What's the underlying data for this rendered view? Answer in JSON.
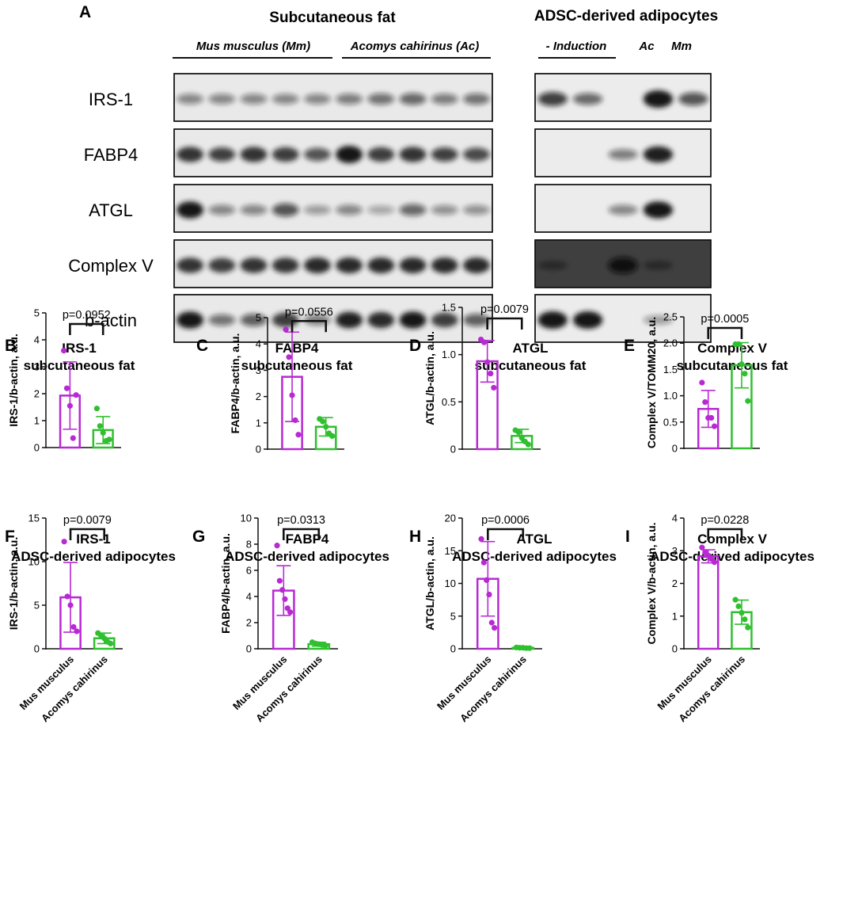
{
  "panel_a": {
    "letter": "A",
    "left_header": "Subcutaneous fat",
    "right_header": "ADSC-derived adipocytes",
    "group_mm": "Mus musculus (Mm)",
    "group_ac": "Acomys cahirinus (Ac)",
    "group_induction": "- Induction",
    "group_ac_short": "Ac",
    "group_mm_short": "Mm",
    "rows": [
      {
        "label": "IRS-1",
        "left": [
          0.35,
          0.35,
          0.35,
          0.35,
          0.35,
          0.4,
          0.45,
          0.5,
          0.4,
          0.45
        ],
        "right": [
          0.7,
          0.5,
          0.0,
          1.0,
          0.6
        ]
      },
      {
        "label": "FABP4",
        "left": [
          0.8,
          0.7,
          0.8,
          0.75,
          0.6,
          1.0,
          0.75,
          0.8,
          0.7,
          0.65
        ],
        "right": [
          0.0,
          0.0,
          0.4,
          0.9,
          0.0
        ]
      },
      {
        "label": "ATGL",
        "left": [
          0.95,
          0.35,
          0.35,
          0.6,
          0.25,
          0.35,
          0.2,
          0.5,
          0.3,
          0.3
        ],
        "right": [
          0.0,
          0.0,
          0.35,
          0.95,
          0.0
        ]
      },
      {
        "label": "Complex V",
        "left": [
          0.8,
          0.75,
          0.8,
          0.8,
          0.85,
          0.85,
          0.85,
          0.85,
          0.85,
          0.85
        ],
        "right": [
          0.25,
          0.0,
          0.9,
          0.25,
          0.0
        ]
      },
      {
        "label": "b-actin",
        "left": [
          0.95,
          0.45,
          0.55,
          0.75,
          0.4,
          0.9,
          0.85,
          0.95,
          0.75,
          0.55
        ],
        "right": [
          1.0,
          1.0,
          0.0,
          0.25,
          0.0
        ]
      }
    ]
  },
  "chart_data": [
    {
      "type": "bar",
      "letter": "B",
      "title": [
        "IRS-1",
        "subcutaneous fat"
      ],
      "ylabel": "IRS-1/b-actin, a.u.",
      "ylim": [
        0,
        5
      ],
      "yticks": [
        0,
        1,
        2,
        3,
        4,
        5
      ],
      "p_label": "p=0.0952",
      "categories": [
        "Mus musculus",
        "Acomys cahirinus"
      ],
      "values": [
        1.93,
        0.65
      ],
      "sd": [
        1.25,
        0.5
      ],
      "points": [
        [
          3.6,
          2.2,
          1.55,
          0.35,
          1.95
        ],
        [
          1.45,
          0.8,
          0.55,
          0.25,
          0.3
        ]
      ]
    },
    {
      "type": "bar",
      "letter": "C",
      "title": [
        "FABP4",
        "subcutaneous fat"
      ],
      "ylabel": "FABP4/b-actin, a.u.",
      "ylim": [
        0,
        5
      ],
      "yticks": [
        0,
        1,
        2,
        3,
        4,
        5
      ],
      "p_label": "p=0.0556",
      "categories": [
        "Mus musculus",
        "Acomys cahirinus"
      ],
      "values": [
        2.75,
        0.85
      ],
      "sd": [
        1.7,
        0.35
      ],
      "points": [
        [
          4.55,
          3.5,
          2.05,
          1.1,
          0.55
        ],
        [
          1.15,
          1.05,
          0.85,
          0.6,
          0.5
        ]
      ]
    },
    {
      "type": "bar",
      "letter": "D",
      "title": [
        "ATGL",
        "subcutaneous fat"
      ],
      "ylabel": "ATGL/b-actin, a.u.",
      "ylim": [
        0,
        1.5
      ],
      "yticks": [
        0,
        0.5,
        1.0,
        1.5
      ],
      "p_label": "p=0.0079",
      "categories": [
        "Mus musculus",
        "Acomys cahirinus"
      ],
      "values": [
        0.93,
        0.14
      ],
      "sd": [
        0.22,
        0.07
      ],
      "points": [
        [
          1.16,
          1.13,
          0.92,
          0.8,
          0.65
        ],
        [
          0.2,
          0.18,
          0.12,
          0.08,
          0.05
        ]
      ]
    },
    {
      "type": "bar",
      "letter": "E",
      "title": [
        "Complex V",
        "subcutaneous fat"
      ],
      "ylabel": "Complex V/TOMM20, a.u.",
      "ylim": [
        0,
        2.5
      ],
      "yticks": [
        0,
        0.5,
        1.0,
        1.5,
        2.0,
        2.5
      ],
      "p_label": "p=0.0005",
      "categories": [
        "Mus musculus",
        "Acomys cahirinus"
      ],
      "values": [
        0.75,
        1.58
      ],
      "sd": [
        0.35,
        0.43
      ],
      "points": [
        [
          1.25,
          0.88,
          0.58,
          0.58,
          0.42
        ],
        [
          1.98,
          1.98,
          1.6,
          1.42,
          0.9
        ]
      ]
    },
    {
      "type": "bar",
      "letter": "F",
      "title": [
        "IRS-1",
        "ADSC-derived adipocytes"
      ],
      "ylabel": "IRS-1/b-actin, a.u.",
      "ylim": [
        0,
        15
      ],
      "yticks": [
        0,
        5,
        10,
        15
      ],
      "p_label": "p=0.0079",
      "categories": [
        "Mus musculus",
        "Acomys cahirinus"
      ],
      "values": [
        5.9,
        1.2
      ],
      "sd": [
        4.0,
        0.6
      ],
      "points": [
        [
          12.3,
          6.0,
          5.0,
          2.5,
          2.0
        ],
        [
          1.8,
          1.5,
          1.2,
          0.8,
          0.6
        ]
      ]
    },
    {
      "type": "bar",
      "letter": "G",
      "title": [
        "FABP4",
        "ADSC-derived adipocytes"
      ],
      "ylabel": "FABP4/b-actin, a.u.",
      "ylim": [
        0,
        10
      ],
      "yticks": [
        0,
        2,
        4,
        6,
        8,
        10
      ],
      "p_label": "p=0.0313",
      "categories": [
        "Mus musculus",
        "Acomys cahirinus"
      ],
      "values": [
        4.45,
        0.35
      ],
      "sd": [
        1.9,
        0.15
      ],
      "points": [
        [
          7.9,
          5.2,
          4.5,
          3.8,
          3.1,
          2.8
        ],
        [
          0.5,
          0.4,
          0.35,
          0.3,
          0.25
        ]
      ]
    },
    {
      "type": "bar",
      "letter": "H",
      "title": [
        "ATGL",
        "ADSC-derived adipocytes"
      ],
      "ylabel": "ATGL/b-actin, a.u.",
      "ylim": [
        0,
        20
      ],
      "yticks": [
        0,
        5,
        10,
        15,
        20
      ],
      "p_label": "p=0.0006",
      "categories": [
        "Mus musculus",
        "Acomys cahirinus"
      ],
      "values": [
        10.7,
        0.15
      ],
      "sd": [
        5.7,
        0.05
      ],
      "points": [
        [
          16.8,
          13.2,
          10.5,
          8.3,
          4.0,
          3.2
        ],
        [
          0.2,
          0.15,
          0.15,
          0.1,
          0.1
        ]
      ]
    },
    {
      "type": "bar",
      "letter": "I",
      "title": [
        "Complex V",
        "ADSC-derived adipocytes"
      ],
      "ylabel": "Complex V/b-actin, a.u.",
      "ylim": [
        0,
        4
      ],
      "yticks": [
        0,
        1,
        2,
        3,
        4
      ],
      "p_label": "p=0.0228",
      "categories": [
        "Mus musculus",
        "Acomys cahirinus"
      ],
      "values": [
        2.83,
        1.12
      ],
      "sd": [
        0.2,
        0.37
      ],
      "points": [
        [
          3.1,
          2.95,
          2.85,
          2.75,
          2.65
        ],
        [
          1.5,
          1.3,
          1.1,
          0.9,
          0.65
        ]
      ]
    }
  ],
  "colors": {
    "mus": "#b829d4",
    "acomys": "#2fbf2f",
    "band": "#1a1a1a"
  }
}
